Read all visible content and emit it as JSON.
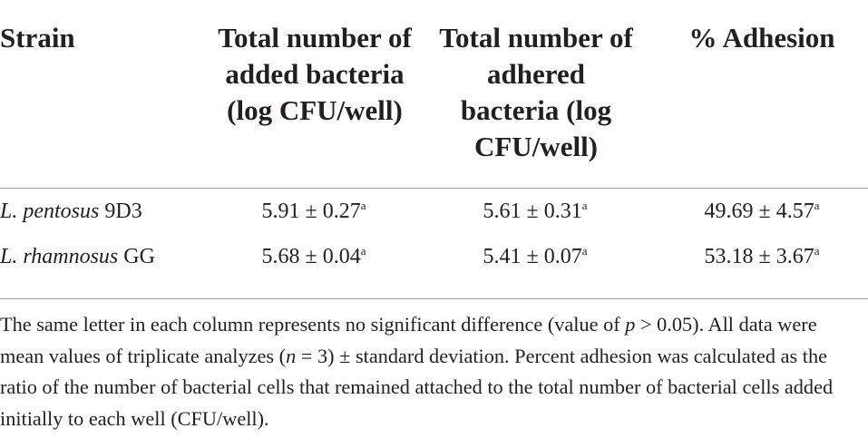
{
  "table": {
    "header": [
      "Strain",
      "Total number of added bacteria (log CFU/well)",
      "Total number of adhered bacteria (log CFU/well)",
      "% Adhesion"
    ],
    "rows": [
      [
        {
          "species": "L. pentosus",
          "strain": "9D3"
        },
        {
          "value": "5.91 ± 0.27",
          "letter": "a"
        },
        {
          "value": "5.61 ± 0.31",
          "letter": "a"
        },
        {
          "value": "49.69 ± 4.57",
          "letter": "a"
        }
      ],
      [
        {
          "species": "L. rhamnosus",
          "strain": "GG"
        },
        {
          "value": "5.68 ± 0.04",
          "letter": "a"
        },
        {
          "value": "5.41 ± 0.07",
          "letter": "a"
        },
        {
          "value": "53.18 ± 3.67",
          "letter": "a"
        }
      ]
    ]
  },
  "footnote": [
    "The same letter in each column represents no significant difference (value of ",
    "p",
    " > 0.05). All data were mean values of triplicate analyzes (",
    "n",
    " = 3) ± standard deviation. Percent adhesion was calculated as the ratio of the number of bacterial cells that remained attached to the total number of bacterial cells added initially to each well (CFU/well)."
  ]
}
